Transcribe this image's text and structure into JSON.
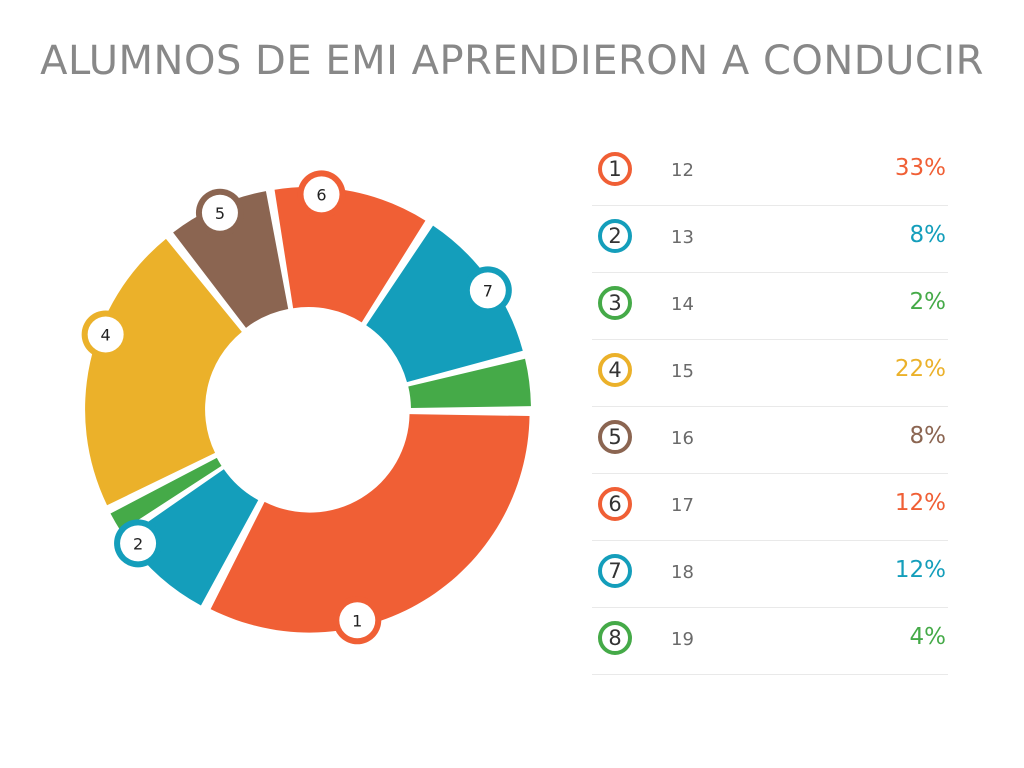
{
  "title": "ALUMNOS DE EMI APRENDIERON A CONDUCIR",
  "chart_data": {
    "type": "pie",
    "title": "ALUMNOS DE EMI APRENDIERON A CONDUCIR",
    "style": "donut",
    "categories": [
      "1",
      "2",
      "3",
      "4",
      "5",
      "6",
      "7",
      "8"
    ],
    "ages": [
      "12",
      "13",
      "14",
      "15",
      "16",
      "17",
      "18",
      "19"
    ],
    "values": [
      33,
      8,
      2,
      22,
      8,
      12,
      12,
      4
    ],
    "value_labels": [
      "33%",
      "8%",
      "2%",
      "22%",
      "8%",
      "12%",
      "12%",
      "4%"
    ],
    "colors": [
      "#f05f35",
      "#149ebb",
      "#45aa48",
      "#ebb12a",
      "#8b6551",
      "#f05f35",
      "#149ebb",
      "#45aa48"
    ],
    "legend_placement": "right"
  }
}
